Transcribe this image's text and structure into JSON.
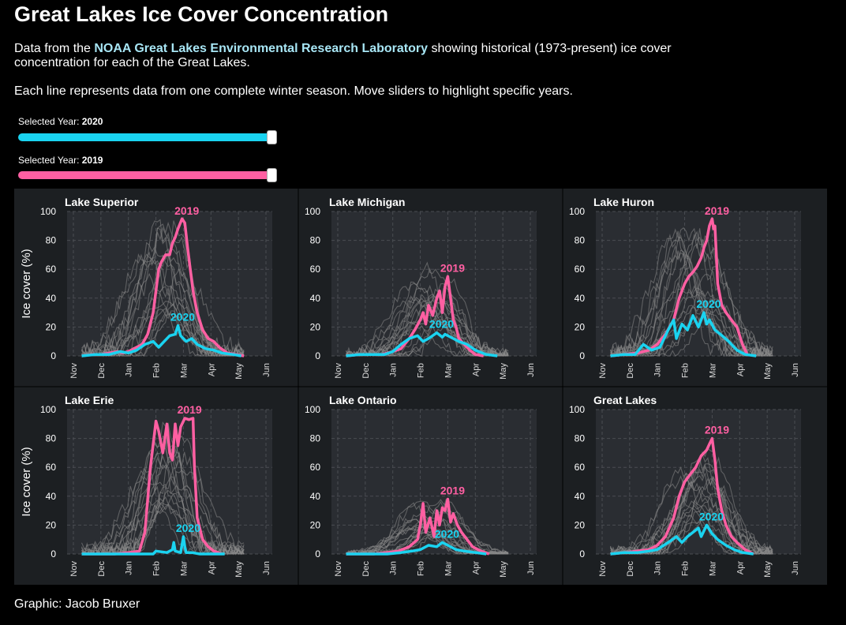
{
  "header": {
    "title": "Great Lakes Ice Cover Concentration",
    "desc_pre": "Data from the ",
    "desc_link": "NOAA Great Lakes Environmental Research Laboratory",
    "desc_post": " showing historical (1973-present) ice cover concentration for each of the Great Lakes.",
    "desc2": "Each line represents data from one complete winter season. Move sliders to highlight specific years."
  },
  "sliders": [
    {
      "label": "Selected Year:",
      "value": "2020",
      "color": "#1ad3f0",
      "position": 1.0
    },
    {
      "label": "Selected Year:",
      "value": "2019",
      "color": "#ff5fa2",
      "position": 1.0
    }
  ],
  "credit": "Graphic: Jacob Bruxer",
  "colors": {
    "highlight_a": "#1ad3f0",
    "highlight_b": "#ff5fa2",
    "history": "#8a8a8a",
    "panel_bg": "#1c1f22",
    "plot_bg": "#2a2d32"
  },
  "chart_data": [
    {
      "type": "line",
      "title": "Lake Superior",
      "ylabel": "Ice cover (%)",
      "x_ticks": [
        "Nov",
        "Dec",
        "Jan",
        "Feb",
        "Mar",
        "Apr",
        "May",
        "Jun"
      ],
      "y_ticks": [
        0,
        20,
        40,
        60,
        80,
        100
      ],
      "ylim": [
        0,
        100
      ],
      "series": [
        {
          "name": "2019",
          "color": "#ff5fa2",
          "x": [
            0.3,
            0.7,
            1.0,
            1.3,
            1.6,
            1.8,
            2.0,
            2.2,
            2.5,
            2.7,
            2.9,
            3.0,
            3.1,
            3.2,
            3.35,
            3.5,
            3.6,
            3.7,
            3.8,
            3.95,
            4.05,
            4.15,
            4.25,
            4.35,
            4.5,
            4.7,
            4.9,
            5.1,
            5.3,
            5.6,
            5.9,
            6.2
          ],
          "y": [
            0,
            1,
            1,
            2,
            3,
            2,
            3,
            5,
            8,
            15,
            30,
            45,
            60,
            65,
            70,
            70,
            78,
            82,
            88,
            95,
            92,
            75,
            60,
            45,
            30,
            18,
            12,
            10,
            6,
            2,
            1,
            0
          ]
        },
        {
          "name": "2020",
          "color": "#1ad3f0",
          "x": [
            0.3,
            0.8,
            1.3,
            1.7,
            2.0,
            2.3,
            2.6,
            2.9,
            3.1,
            3.3,
            3.5,
            3.7,
            3.8,
            3.9,
            4.1,
            4.3,
            4.5,
            4.8,
            5.1,
            5.4,
            5.8,
            6.1
          ],
          "y": [
            0,
            1,
            1,
            3,
            2,
            4,
            8,
            10,
            6,
            10,
            14,
            15,
            21,
            14,
            10,
            12,
            8,
            5,
            4,
            2,
            1,
            0
          ]
        }
      ]
    },
    {
      "type": "line",
      "title": "Lake Michigan",
      "ylabel": "",
      "x_ticks": [
        "Nov",
        "Dec",
        "Jan",
        "Feb",
        "Mar",
        "Apr",
        "May",
        "Jun"
      ],
      "y_ticks": [
        0,
        20,
        40,
        60,
        80,
        100
      ],
      "ylim": [
        0,
        100
      ],
      "series": [
        {
          "name": "2019",
          "color": "#ff5fa2",
          "x": [
            0.3,
            0.8,
            1.2,
            1.6,
            2.0,
            2.3,
            2.6,
            2.8,
            3.0,
            3.1,
            3.2,
            3.3,
            3.45,
            3.6,
            3.7,
            3.8,
            3.9,
            4.0,
            4.1,
            4.2,
            4.3,
            4.4,
            4.6,
            4.8,
            5.0,
            5.3
          ],
          "y": [
            0,
            1,
            1,
            1,
            3,
            5,
            12,
            18,
            25,
            30,
            22,
            35,
            28,
            40,
            45,
            30,
            48,
            55,
            40,
            25,
            20,
            12,
            8,
            4,
            1,
            0
          ]
        },
        {
          "name": "2020",
          "color": "#1ad3f0",
          "x": [
            0.3,
            0.8,
            1.3,
            1.7,
            2.0,
            2.3,
            2.6,
            2.9,
            3.1,
            3.3,
            3.6,
            3.8,
            3.9,
            4.2,
            4.4,
            4.7,
            5.0,
            5.4,
            5.8
          ],
          "y": [
            0,
            1,
            1,
            1,
            3,
            8,
            12,
            14,
            10,
            12,
            16,
            13,
            15,
            12,
            10,
            8,
            4,
            1,
            0
          ]
        }
      ]
    },
    {
      "type": "line",
      "title": "Lake Huron",
      "ylabel": "",
      "x_ticks": [
        "Nov",
        "Dec",
        "Jan",
        "Feb",
        "Mar",
        "Apr",
        "May",
        "Jun"
      ],
      "y_ticks": [
        0,
        20,
        40,
        60,
        80,
        100
      ],
      "ylim": [
        0,
        100
      ],
      "series": [
        {
          "name": "2019",
          "color": "#ff5fa2",
          "x": [
            0.3,
            0.8,
            1.3,
            1.7,
            2.0,
            2.3,
            2.6,
            2.8,
            3.0,
            3.15,
            3.3,
            3.45,
            3.6,
            3.7,
            3.8,
            3.9,
            4.0,
            4.05,
            4.1,
            4.15,
            4.2,
            4.35,
            4.5,
            4.7,
            4.9,
            5.1,
            5.3
          ],
          "y": [
            0,
            1,
            2,
            4,
            8,
            15,
            25,
            40,
            50,
            55,
            58,
            62,
            68,
            75,
            80,
            90,
            95,
            88,
            90,
            70,
            50,
            35,
            30,
            25,
            20,
            8,
            0
          ]
        },
        {
          "name": "2020",
          "color": "#1ad3f0",
          "x": [
            0.3,
            0.8,
            1.2,
            1.5,
            1.8,
            2.1,
            2.4,
            2.6,
            2.7,
            2.9,
            3.1,
            3.3,
            3.5,
            3.7,
            3.8,
            3.9,
            4.1,
            4.3,
            4.6,
            4.9,
            5.2,
            5.6
          ],
          "y": [
            0,
            1,
            1,
            8,
            4,
            6,
            18,
            25,
            12,
            22,
            18,
            28,
            20,
            30,
            22,
            25,
            18,
            15,
            10,
            4,
            1,
            0
          ]
        }
      ]
    },
    {
      "type": "line",
      "title": "Lake Erie",
      "ylabel": "Ice cover (%)",
      "x_ticks": [
        "Nov",
        "Dec",
        "Jan",
        "Feb",
        "Mar",
        "Apr",
        "May",
        "Jun"
      ],
      "y_ticks": [
        0,
        20,
        40,
        60,
        80,
        100
      ],
      "ylim": [
        0,
        100
      ],
      "series": [
        {
          "name": "2019",
          "color": "#ff5fa2",
          "x": [
            0.3,
            1.0,
            1.5,
            2.0,
            2.4,
            2.6,
            2.8,
            3.0,
            3.1,
            3.25,
            3.4,
            3.5,
            3.6,
            3.7,
            3.8,
            3.9,
            4.05,
            4.2,
            4.35,
            4.4,
            4.5,
            4.7,
            4.9,
            5.1,
            5.4
          ],
          "y": [
            0,
            0,
            0,
            1,
            2,
            15,
            60,
            92,
            85,
            70,
            90,
            70,
            65,
            90,
            75,
            88,
            94,
            93,
            94,
            60,
            25,
            10,
            5,
            2,
            0
          ]
        },
        {
          "name": "2020",
          "color": "#1ad3f0",
          "x": [
            0.3,
            1.0,
            1.5,
            2.0,
            2.5,
            2.9,
            3.0,
            3.4,
            3.6,
            3.65,
            3.7,
            3.9,
            4.0,
            4.05,
            4.1,
            4.3,
            4.6,
            5.0,
            5.5
          ],
          "y": [
            0,
            0,
            0,
            0,
            0,
            0,
            2,
            1,
            3,
            8,
            2,
            1,
            12,
            5,
            1,
            1,
            0,
            0,
            0
          ]
        }
      ]
    },
    {
      "type": "line",
      "title": "Lake Ontario",
      "ylabel": "",
      "x_ticks": [
        "Nov",
        "Dec",
        "Jan",
        "Feb",
        "Mar",
        "Apr",
        "May",
        "Jun"
      ],
      "y_ticks": [
        0,
        20,
        40,
        60,
        80,
        100
      ],
      "ylim": [
        0,
        100
      ],
      "series": [
        {
          "name": "2019",
          "color": "#ff5fa2",
          "x": [
            0.3,
            0.8,
            1.3,
            1.8,
            2.2,
            2.6,
            2.9,
            3.0,
            3.1,
            3.2,
            3.35,
            3.5,
            3.6,
            3.7,
            3.8,
            3.9,
            4.0,
            4.1,
            4.2,
            4.35,
            4.5,
            4.7,
            4.9,
            5.2,
            5.5
          ],
          "y": [
            0,
            0,
            0,
            1,
            2,
            5,
            10,
            20,
            35,
            15,
            25,
            12,
            30,
            20,
            32,
            30,
            38,
            22,
            28,
            20,
            15,
            10,
            5,
            2,
            0
          ]
        },
        {
          "name": "2020",
          "color": "#1ad3f0",
          "x": [
            0.3,
            0.8,
            1.3,
            1.8,
            2.3,
            2.7,
            3.0,
            3.3,
            3.6,
            3.8,
            4.0,
            4.3,
            4.6,
            5.0,
            5.4
          ],
          "y": [
            0,
            0,
            0,
            0,
            1,
            2,
            3,
            6,
            5,
            8,
            6,
            3,
            2,
            1,
            0
          ]
        }
      ]
    },
    {
      "type": "line",
      "title": "Great Lakes",
      "ylabel": "",
      "x_ticks": [
        "Nov",
        "Dec",
        "Jan",
        "Feb",
        "Mar",
        "Apr",
        "May",
        "Jun"
      ],
      "y_ticks": [
        0,
        20,
        40,
        60,
        80,
        100
      ],
      "ylim": [
        0,
        100
      ],
      "series": [
        {
          "name": "2019",
          "color": "#ff5fa2",
          "x": [
            0.3,
            0.8,
            1.3,
            1.7,
            2.0,
            2.3,
            2.6,
            2.8,
            3.0,
            3.2,
            3.4,
            3.6,
            3.7,
            3.8,
            3.9,
            4.0,
            4.1,
            4.2,
            4.35,
            4.5,
            4.7,
            4.9,
            5.2,
            5.5
          ],
          "y": [
            0,
            1,
            2,
            3,
            6,
            12,
            25,
            40,
            50,
            55,
            60,
            68,
            70,
            72,
            76,
            80,
            65,
            45,
            30,
            20,
            12,
            8,
            3,
            0
          ]
        },
        {
          "name": "2020",
          "color": "#1ad3f0",
          "x": [
            0.3,
            0.8,
            1.3,
            1.7,
            2.0,
            2.4,
            2.7,
            2.9,
            3.1,
            3.3,
            3.5,
            3.6,
            3.8,
            4.0,
            4.2,
            4.5,
            4.8,
            5.1,
            5.5
          ],
          "y": [
            0,
            1,
            1,
            2,
            3,
            8,
            12,
            8,
            12,
            15,
            18,
            12,
            20,
            14,
            10,
            6,
            3,
            1,
            0
          ]
        }
      ]
    }
  ]
}
